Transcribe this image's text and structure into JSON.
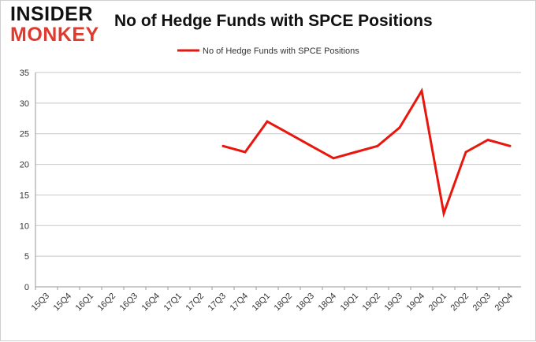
{
  "logo": {
    "line1": "INSIDER",
    "line2": "MONKEY"
  },
  "colors": {
    "series": "#e8160c",
    "grid": "#c8c8c8",
    "axis": "#999999",
    "text": "#333333"
  },
  "chart_data": {
    "type": "line",
    "title": "No of Hedge Funds with SPCE Positions",
    "xlabel": "",
    "ylabel": "",
    "categories": [
      "15Q3",
      "15Q4",
      "16Q1",
      "16Q2",
      "16Q3",
      "16Q4",
      "17Q1",
      "17Q2",
      "17Q3",
      "17Q4",
      "18Q1",
      "18Q2",
      "18Q3",
      "18Q4",
      "19Q1",
      "19Q2",
      "19Q3",
      "19Q4",
      "20Q1",
      "20Q2",
      "20Q3",
      "20Q4"
    ],
    "yticks": [
      "0",
      "5",
      "10",
      "15",
      "20",
      "25",
      "30",
      "35"
    ],
    "ylim": [
      0,
      35
    ],
    "grid": true,
    "legend_position": "top-center",
    "series": [
      {
        "name": "No of Hedge Funds with SPCE Positions",
        "color": "#e8160c",
        "values": [
          null,
          null,
          null,
          null,
          null,
          null,
          null,
          null,
          23,
          22,
          27,
          25,
          23,
          21,
          22,
          23,
          26,
          32,
          12,
          22,
          24,
          23
        ]
      }
    ]
  }
}
